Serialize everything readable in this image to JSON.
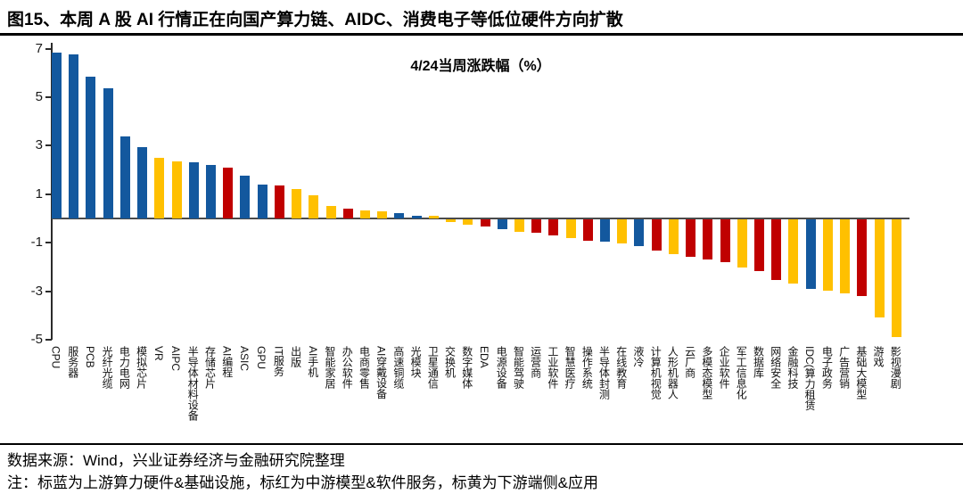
{
  "figure": {
    "title": "图15、本周 A 股 AI 行情正在向国产算力链、AIDC、消费电子等低位硬件方向扩散"
  },
  "chart_data": {
    "type": "bar",
    "title": "4/24当周涨跌幅（%）",
    "xlabel": "",
    "ylabel": "",
    "ylim": [
      -5,
      7
    ],
    "yticks": [
      7,
      5,
      3,
      1,
      -1,
      -3,
      -5
    ],
    "grid": false,
    "legend_position": "none",
    "palette": {
      "blue": "#13589E",
      "red": "#C00000",
      "yellow": "#FFC000"
    },
    "color_legend": {
      "blue": "上游算力硬件&基础设施",
      "red": "中游模型&软件服务",
      "yellow": "下游端侧&应用"
    },
    "categories": [
      "CPU",
      "服务器",
      "PCB",
      "光纤光缆",
      "电力电网",
      "模拟芯片",
      "VR",
      "AIPC",
      "半导体材料设备",
      "存储芯片",
      "AI编程",
      "ASIC",
      "GPU",
      "IT服务",
      "出版",
      "AI手机",
      "智能家居",
      "办公软件",
      "电商零售",
      "AI穿戴设备",
      "高速铜缆",
      "光模块",
      "卫星通信",
      "交换机",
      "数字媒体",
      "EDA",
      "电源设备",
      "智能驾驶",
      "运营商",
      "工业软件",
      "智慧医疗",
      "操作系统",
      "半导体封测",
      "在线教育",
      "液冷",
      "计算机视觉",
      "人形机器人",
      "云厂商",
      "多模态模型",
      "企业软件",
      "军工信息化",
      "数据库",
      "网络安全",
      "金融科技",
      "IDC(算力租赁",
      "电子政务",
      "广告营销",
      "基础大模型",
      "游戏",
      "影视漫剧"
    ],
    "values": [
      6.85,
      6.75,
      5.85,
      5.35,
      3.4,
      2.95,
      2.5,
      2.35,
      2.3,
      2.2,
      2.1,
      1.75,
      1.4,
      1.35,
      1.2,
      0.95,
      0.5,
      0.4,
      0.32,
      0.3,
      0.22,
      0.1,
      0.1,
      -0.12,
      -0.22,
      -0.3,
      -0.42,
      -0.5,
      -0.55,
      -0.65,
      -0.78,
      -0.9,
      -0.92,
      -1.0,
      -1.1,
      -1.3,
      -1.45,
      -1.55,
      -1.65,
      -1.75,
      -2.0,
      -2.15,
      -2.5,
      -2.65,
      -2.85,
      -2.95,
      -3.05,
      -3.15,
      -4.05,
      -4.85
    ],
    "bar_colors": [
      "blue",
      "blue",
      "blue",
      "blue",
      "blue",
      "blue",
      "yellow",
      "yellow",
      "blue",
      "blue",
      "red",
      "blue",
      "blue",
      "red",
      "yellow",
      "yellow",
      "yellow",
      "red",
      "yellow",
      "yellow",
      "blue",
      "blue",
      "yellow",
      "yellow",
      "yellow",
      "red",
      "blue",
      "yellow",
      "red",
      "red",
      "yellow",
      "red",
      "blue",
      "yellow",
      "blue",
      "red",
      "yellow",
      "red",
      "red",
      "red",
      "yellow",
      "red",
      "red",
      "yellow",
      "blue",
      "yellow",
      "yellow",
      "red",
      "yellow",
      "yellow"
    ]
  },
  "footer": {
    "source": "数据来源：Wind，兴业证券经济与金融研究院整理",
    "note": "注：标蓝为上游算力硬件&基础设施，标红为中游模型&软件服务，标黄为下游端侧&应用"
  }
}
